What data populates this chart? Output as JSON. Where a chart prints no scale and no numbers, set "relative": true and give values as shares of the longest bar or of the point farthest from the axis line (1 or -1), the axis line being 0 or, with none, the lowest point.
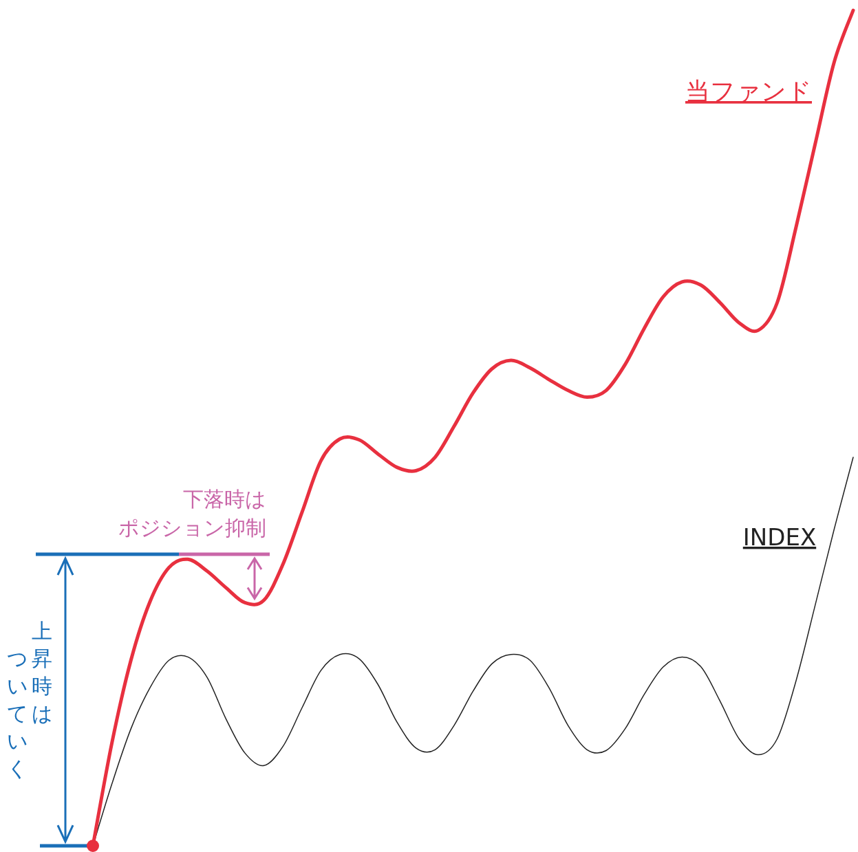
{
  "chart_data": {
    "type": "line",
    "relative": true,
    "categories": [
      null,
      null,
      null,
      null,
      null,
      null,
      null,
      null,
      null,
      null,
      null,
      null,
      null,
      null,
      null,
      null,
      null,
      null,
      null,
      null,
      null,
      null,
      null,
      null,
      null,
      null,
      null,
      null,
      null,
      null,
      null,
      null,
      null,
      null,
      null,
      null,
      null,
      null,
      null,
      null,
      null
    ],
    "series": [
      {
        "name": "当ファンド",
        "color": "#e8303f",
        "values": [
          0,
          0.123,
          0.222,
          0.292,
          0.333,
          0.343,
          0.329,
          0.309,
          0.291,
          0.294,
          0.337,
          0.399,
          0.461,
          0.487,
          0.486,
          0.469,
          0.453,
          0.449,
          0.465,
          0.502,
          0.542,
          0.571,
          0.581,
          0.572,
          0.558,
          0.545,
          0.537,
          0.545,
          0.576,
          0.619,
          0.657,
          0.675,
          0.671,
          0.65,
          0.626,
          0.617,
          0.65,
          0.741,
          0.84,
          0.938,
          1
        ]
      },
      {
        "name": "INDEX",
        "color": "#222222",
        "values": [
          0,
          0.074,
          0.14,
          0.189,
          0.222,
          0.226,
          0.202,
          0.152,
          0.111,
          0.096,
          0.119,
          0.165,
          0.21,
          0.229,
          0.224,
          0.193,
          0.148,
          0.117,
          0.115,
          0.144,
          0.185,
          0.218,
          0.229,
          0.222,
          0.189,
          0.144,
          0.115,
          0.114,
          0.14,
          0.181,
          0.214,
          0.226,
          0.214,
          0.173,
          0.128,
          0.109,
          0.128,
          0.198,
          0.288,
          0.379,
          0.465
        ]
      }
    ],
    "annotations": [
      "上昇時は",
      "ついていく",
      "下落時は",
      "ポジション抑制"
    ]
  }
}
